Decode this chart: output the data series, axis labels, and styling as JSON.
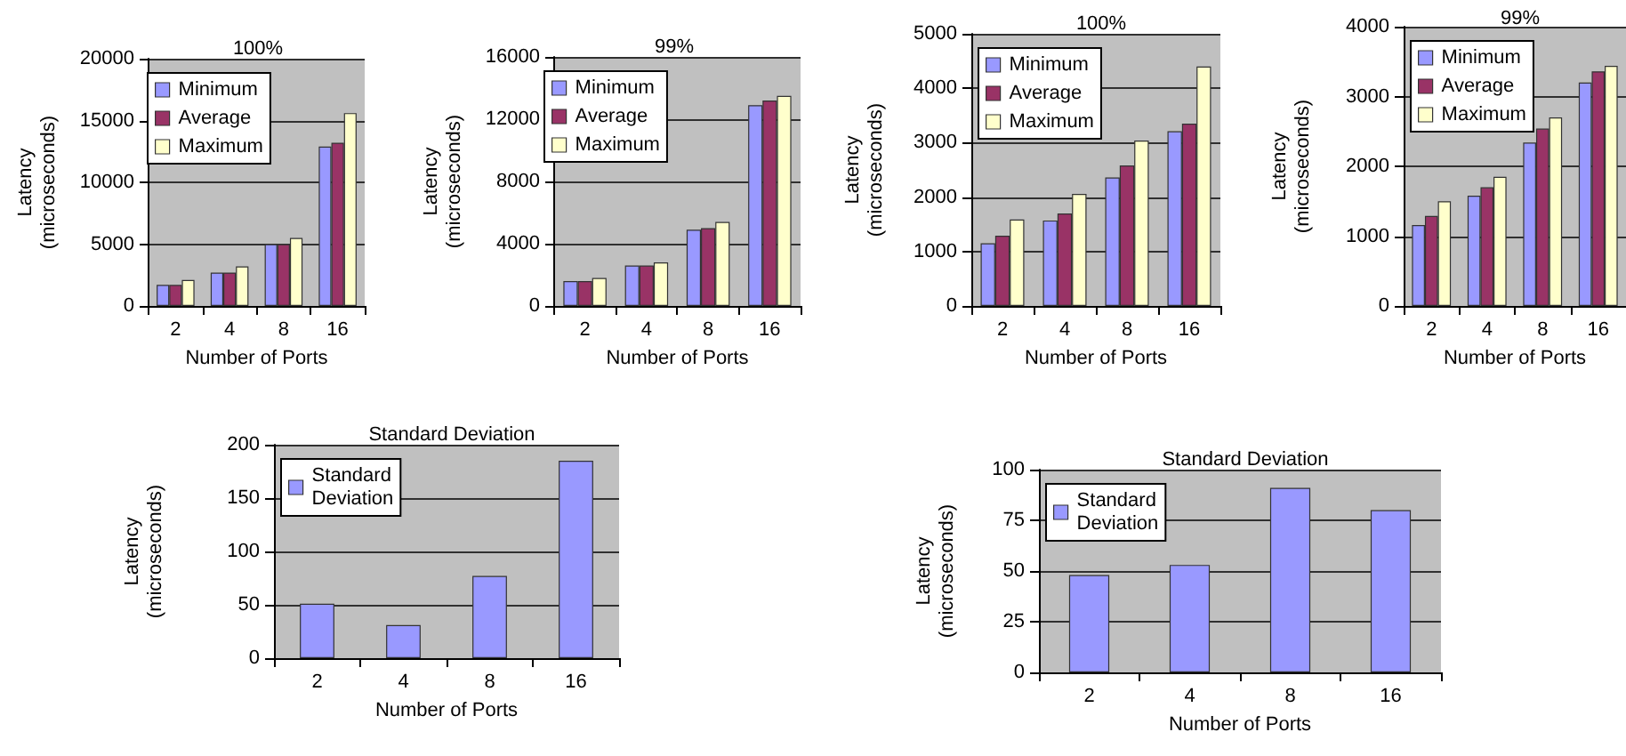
{
  "chart_data": [
    {
      "type": "bar",
      "title": "100%",
      "xlabel": "Number of Ports",
      "ylabel": "Latency\n(microseconds)",
      "categories": [
        "2",
        "4",
        "8",
        "16"
      ],
      "series": [
        {
          "name": "Minimum",
          "color": "#9999ff",
          "values": [
            1700,
            2700,
            5000,
            12900
          ]
        },
        {
          "name": "Average",
          "color": "#993366",
          "values": [
            1700,
            2700,
            5000,
            13200
          ]
        },
        {
          "name": "Maximum",
          "color": "#ffffcc",
          "values": [
            2100,
            3200,
            5500,
            15600
          ]
        }
      ],
      "ylim": [
        0,
        20000
      ],
      "yticks": [
        0,
        5000,
        10000,
        15000,
        20000
      ],
      "grid": "y",
      "legend": "top left"
    },
    {
      "type": "bar",
      "title": "99%",
      "xlabel": "Number of Ports",
      "ylabel": "Latency\n(microseconds)",
      "categories": [
        "2",
        "4",
        "8",
        "16"
      ],
      "series": [
        {
          "name": "Minimum",
          "color": "#9999ff",
          "values": [
            1600,
            2600,
            4900,
            12900
          ]
        },
        {
          "name": "Average",
          "color": "#993366",
          "values": [
            1600,
            2600,
            5000,
            13200
          ]
        },
        {
          "name": "Maximum",
          "color": "#ffffcc",
          "values": [
            1800,
            2800,
            5400,
            13500
          ]
        }
      ],
      "ylim": [
        0,
        16000
      ],
      "yticks": [
        0,
        4000,
        8000,
        12000,
        16000
      ],
      "grid": "y",
      "legend": "top left"
    },
    {
      "type": "bar",
      "title": "100%",
      "xlabel": "Number of Ports",
      "ylabel": "Latency\n(microseconds)",
      "categories": [
        "2",
        "4",
        "8",
        "16"
      ],
      "series": [
        {
          "name": "Minimum",
          "color": "#9999ff",
          "values": [
            1150,
            1570,
            2360,
            3210
          ]
        },
        {
          "name": "Average",
          "color": "#993366",
          "values": [
            1290,
            1700,
            2580,
            3350
          ]
        },
        {
          "name": "Maximum",
          "color": "#ffffcc",
          "values": [
            1590,
            2060,
            3040,
            4400
          ]
        }
      ],
      "ylim": [
        0,
        5000
      ],
      "yticks": [
        0,
        1000,
        2000,
        3000,
        4000,
        5000
      ],
      "grid": "y",
      "legend": "top left"
    },
    {
      "type": "bar",
      "title": "99%",
      "xlabel": "Number of Ports",
      "ylabel": "Latency\n(microseconds)",
      "categories": [
        "2",
        "4",
        "8",
        "16"
      ],
      "series": [
        {
          "name": "Minimum",
          "color": "#9999ff",
          "values": [
            1160,
            1580,
            2340,
            3200
          ]
        },
        {
          "name": "Average",
          "color": "#993366",
          "values": [
            1290,
            1700,
            2540,
            3360
          ]
        },
        {
          "name": "Maximum",
          "color": "#ffffcc",
          "values": [
            1500,
            1850,
            2700,
            3440
          ]
        }
      ],
      "ylim": [
        0,
        4000
      ],
      "yticks": [
        0,
        1000,
        2000,
        3000,
        4000
      ],
      "grid": "y",
      "legend": "top left"
    },
    {
      "type": "bar",
      "title": "Standard Deviation",
      "xlabel": "Number of Ports",
      "ylabel": "Latency\n(microseconds)",
      "categories": [
        "2",
        "4",
        "8",
        "16"
      ],
      "series": [
        {
          "name": "Standard\nDeviation",
          "color": "#9999ff",
          "values": [
            51,
            31,
            77,
            185
          ]
        }
      ],
      "ylim": [
        0,
        200
      ],
      "yticks": [
        0,
        50,
        100,
        150,
        200
      ],
      "grid": "y",
      "legend": "top left"
    },
    {
      "type": "bar",
      "title": "Standard Deviation",
      "xlabel": "Number of Ports",
      "ylabel": "Latency\n(microseconds)",
      "categories": [
        "2",
        "4",
        "8",
        "16"
      ],
      "series": [
        {
          "name": "Standard\nDeviation",
          "color": "#9999ff",
          "values": [
            48,
            53,
            91,
            80
          ]
        }
      ],
      "ylim": [
        0,
        100
      ],
      "yticks": [
        0,
        25,
        50,
        75,
        100
      ],
      "grid": "y",
      "legend": "top left"
    }
  ]
}
